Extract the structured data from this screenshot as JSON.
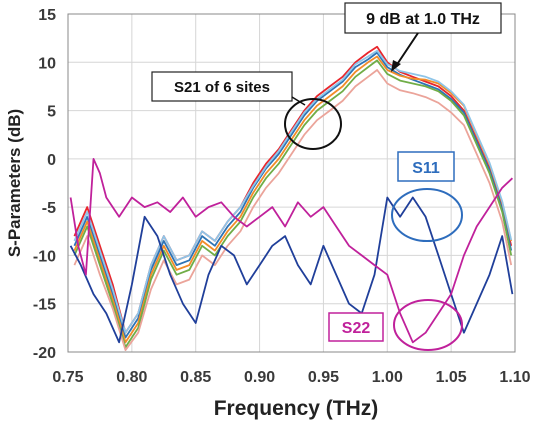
{
  "chart_data": {
    "type": "line",
    "title": "",
    "xlabel": "Frequency (THz)",
    "ylabel": "S-Parameters (dB)",
    "xlim": [
      0.75,
      1.1
    ],
    "ylim": [
      -20,
      15
    ],
    "x_ticks": [
      "0.75",
      "0.80",
      "0.85",
      "0.90",
      "0.95",
      "1.00",
      "1.05",
      "1.10"
    ],
    "y_ticks": [
      "15",
      "10",
      "5",
      "0",
      "-5",
      "-10",
      "-15",
      "-20"
    ],
    "grid": true,
    "legend": "none",
    "annotations": {
      "peak": "9 dB at 1.0 THz",
      "s21": "S21 of 6 sites",
      "s11": "S11",
      "s22": "S22"
    },
    "series": [
      {
        "color": "#e8262c",
        "values": [
          [
            0.755,
            -8
          ],
          [
            0.765,
            -5
          ],
          [
            0.775,
            -9
          ],
          [
            0.785,
            -13
          ],
          [
            0.795,
            -18
          ],
          [
            0.805,
            -16
          ],
          [
            0.815,
            -11
          ],
          [
            0.825,
            -8
          ],
          [
            0.835,
            -10.5
          ],
          [
            0.845,
            -10
          ],
          [
            0.855,
            -7.5
          ],
          [
            0.865,
            -8.5
          ],
          [
            0.875,
            -6.5
          ],
          [
            0.885,
            -5
          ],
          [
            0.895,
            -2.5
          ],
          [
            0.905,
            -0.5
          ],
          [
            0.915,
            1
          ],
          [
            0.925,
            3
          ],
          [
            0.935,
            5
          ],
          [
            0.945,
            6.5
          ],
          [
            0.955,
            7.5
          ],
          [
            0.965,
            8.5
          ],
          [
            0.975,
            10
          ],
          [
            0.985,
            11
          ],
          [
            0.992,
            11.6
          ],
          [
            1.0,
            10
          ],
          [
            1.01,
            9
          ],
          [
            1.02,
            8.5
          ],
          [
            1.03,
            8
          ],
          [
            1.04,
            7.5
          ],
          [
            1.05,
            6.5
          ],
          [
            1.06,
            5
          ],
          [
            1.07,
            2
          ],
          [
            1.08,
            -1
          ],
          [
            1.09,
            -5
          ],
          [
            1.097,
            -9
          ]
        ]
      },
      {
        "color": "#2e74b5",
        "values": [
          [
            0.755,
            -9
          ],
          [
            0.765,
            -6
          ],
          [
            0.775,
            -10
          ],
          [
            0.785,
            -14
          ],
          [
            0.795,
            -18.5
          ],
          [
            0.805,
            -16.5
          ],
          [
            0.815,
            -11.5
          ],
          [
            0.825,
            -8.5
          ],
          [
            0.835,
            -11
          ],
          [
            0.845,
            -10.5
          ],
          [
            0.855,
            -8
          ],
          [
            0.865,
            -9
          ],
          [
            0.875,
            -7
          ],
          [
            0.885,
            -5.5
          ],
          [
            0.895,
            -3
          ],
          [
            0.905,
            -1
          ],
          [
            0.915,
            0.5
          ],
          [
            0.925,
            2.5
          ],
          [
            0.935,
            4.5
          ],
          [
            0.945,
            6
          ],
          [
            0.955,
            7
          ],
          [
            0.965,
            8
          ],
          [
            0.975,
            9.5
          ],
          [
            0.985,
            10.3
          ],
          [
            0.992,
            11
          ],
          [
            1.0,
            9.5
          ],
          [
            1.01,
            8.7
          ],
          [
            1.02,
            8.2
          ],
          [
            1.03,
            7.7
          ],
          [
            1.04,
            7.2
          ],
          [
            1.05,
            6.2
          ],
          [
            1.06,
            4.8
          ],
          [
            1.07,
            1.8
          ],
          [
            1.08,
            -1.2
          ],
          [
            1.09,
            -5.2
          ],
          [
            1.097,
            -9.5
          ]
        ]
      },
      {
        "color": "#f28c28",
        "values": [
          [
            0.755,
            -9.5
          ],
          [
            0.765,
            -6.5
          ],
          [
            0.775,
            -10.5
          ],
          [
            0.785,
            -14.5
          ],
          [
            0.795,
            -19
          ],
          [
            0.805,
            -17
          ],
          [
            0.815,
            -12
          ],
          [
            0.825,
            -9
          ],
          [
            0.835,
            -11.5
          ],
          [
            0.845,
            -11
          ],
          [
            0.855,
            -8.5
          ],
          [
            0.865,
            -9.5
          ],
          [
            0.875,
            -7.5
          ],
          [
            0.885,
            -6
          ],
          [
            0.895,
            -3.5
          ],
          [
            0.905,
            -1.5
          ],
          [
            0.915,
            0
          ],
          [
            0.925,
            2
          ],
          [
            0.935,
            4
          ],
          [
            0.945,
            5.5
          ],
          [
            0.955,
            6.5
          ],
          [
            0.965,
            7.5
          ],
          [
            0.975,
            9
          ],
          [
            0.985,
            10
          ],
          [
            0.992,
            10.6
          ],
          [
            1.0,
            9.2
          ],
          [
            1.01,
            8.6
          ],
          [
            1.02,
            8.3
          ],
          [
            1.03,
            8.2
          ],
          [
            1.04,
            7.8
          ],
          [
            1.05,
            6.8
          ],
          [
            1.06,
            5.5
          ],
          [
            1.07,
            2.5
          ],
          [
            1.08,
            -0.5
          ],
          [
            1.09,
            -4.5
          ],
          [
            1.097,
            -8.5
          ]
        ]
      },
      {
        "color": "#70ad47",
        "values": [
          [
            0.755,
            -10
          ],
          [
            0.765,
            -7
          ],
          [
            0.775,
            -11
          ],
          [
            0.785,
            -15
          ],
          [
            0.795,
            -19.5
          ],
          [
            0.805,
            -17.5
          ],
          [
            0.815,
            -12.5
          ],
          [
            0.825,
            -9.5
          ],
          [
            0.835,
            -12
          ],
          [
            0.845,
            -11.5
          ],
          [
            0.855,
            -9
          ],
          [
            0.865,
            -10
          ],
          [
            0.875,
            -8
          ],
          [
            0.885,
            -6.5
          ],
          [
            0.895,
            -4
          ],
          [
            0.905,
            -2
          ],
          [
            0.915,
            -0.5
          ],
          [
            0.925,
            1.5
          ],
          [
            0.935,
            3.5
          ],
          [
            0.945,
            5
          ],
          [
            0.955,
            6
          ],
          [
            0.965,
            7
          ],
          [
            0.975,
            8.5
          ],
          [
            0.985,
            9.5
          ],
          [
            0.992,
            10.2
          ],
          [
            1.0,
            8.8
          ],
          [
            1.01,
            8.1
          ],
          [
            1.02,
            7.8
          ],
          [
            1.03,
            7.5
          ],
          [
            1.04,
            7
          ],
          [
            1.05,
            6
          ],
          [
            1.06,
            4.5
          ],
          [
            1.07,
            1.5
          ],
          [
            1.08,
            -1.5
          ],
          [
            1.09,
            -5.5
          ],
          [
            1.097,
            -10
          ]
        ]
      },
      {
        "color": "#8ec5e8",
        "values": [
          [
            0.755,
            -8.5
          ],
          [
            0.765,
            -5.5
          ],
          [
            0.775,
            -9.5
          ],
          [
            0.785,
            -13.5
          ],
          [
            0.795,
            -18
          ],
          [
            0.805,
            -16
          ],
          [
            0.815,
            -11
          ],
          [
            0.825,
            -8
          ],
          [
            0.835,
            -10.5
          ],
          [
            0.845,
            -10
          ],
          [
            0.855,
            -7.5
          ],
          [
            0.865,
            -8.5
          ],
          [
            0.875,
            -6.5
          ],
          [
            0.885,
            -5
          ],
          [
            0.895,
            -2.8
          ],
          [
            0.905,
            -0.8
          ],
          [
            0.915,
            0.8
          ],
          [
            0.925,
            2.8
          ],
          [
            0.935,
            4.8
          ],
          [
            0.945,
            6.2
          ],
          [
            0.955,
            7.2
          ],
          [
            0.965,
            8.2
          ],
          [
            0.975,
            9.8
          ],
          [
            0.985,
            10.6
          ],
          [
            0.992,
            11.2
          ],
          [
            1.0,
            9.8
          ],
          [
            1.01,
            9.1
          ],
          [
            1.02,
            8.8
          ],
          [
            1.03,
            8.5
          ],
          [
            1.04,
            8
          ],
          [
            1.05,
            7
          ],
          [
            1.06,
            5.6
          ],
          [
            1.07,
            2.6
          ],
          [
            1.08,
            -0.4
          ],
          [
            1.09,
            -4.4
          ],
          [
            1.097,
            -8.4
          ]
        ]
      },
      {
        "color": "#eba49a",
        "values": [
          [
            0.755,
            -11
          ],
          [
            0.765,
            -8
          ],
          [
            0.775,
            -12
          ],
          [
            0.785,
            -15.5
          ],
          [
            0.795,
            -19.8
          ],
          [
            0.805,
            -18
          ],
          [
            0.815,
            -13.5
          ],
          [
            0.825,
            -10.5
          ],
          [
            0.835,
            -13
          ],
          [
            0.845,
            -12.5
          ],
          [
            0.855,
            -10
          ],
          [
            0.865,
            -11
          ],
          [
            0.875,
            -9
          ],
          [
            0.885,
            -7.5
          ],
          [
            0.895,
            -5
          ],
          [
            0.905,
            -3
          ],
          [
            0.915,
            -1.5
          ],
          [
            0.925,
            0.5
          ],
          [
            0.935,
            2.5
          ],
          [
            0.945,
            4
          ],
          [
            0.955,
            5
          ],
          [
            0.965,
            6
          ],
          [
            0.975,
            7.5
          ],
          [
            0.985,
            8.5
          ],
          [
            0.992,
            9.2
          ],
          [
            1.0,
            7.8
          ],
          [
            1.01,
            7.1
          ],
          [
            1.02,
            6.8
          ],
          [
            1.03,
            6.4
          ],
          [
            1.04,
            5.8
          ],
          [
            1.05,
            4.8
          ],
          [
            1.06,
            3.5
          ],
          [
            1.07,
            0.5
          ],
          [
            1.08,
            -2.5
          ],
          [
            1.09,
            -6.5
          ],
          [
            1.097,
            -11
          ]
        ]
      },
      {
        "color": "#203f9a",
        "values": [
          [
            0.752,
            -9
          ],
          [
            0.76,
            -11
          ],
          [
            0.77,
            -14
          ],
          [
            0.78,
            -16
          ],
          [
            0.79,
            -19
          ],
          [
            0.8,
            -13
          ],
          [
            0.81,
            -6
          ],
          [
            0.82,
            -8
          ],
          [
            0.83,
            -12
          ],
          [
            0.84,
            -15
          ],
          [
            0.85,
            -17
          ],
          [
            0.86,
            -12
          ],
          [
            0.87,
            -9
          ],
          [
            0.88,
            -10
          ],
          [
            0.89,
            -13
          ],
          [
            0.9,
            -11
          ],
          [
            0.91,
            -9
          ],
          [
            0.92,
            -8
          ],
          [
            0.93,
            -11
          ],
          [
            0.94,
            -13
          ],
          [
            0.95,
            -9
          ],
          [
            0.96,
            -12
          ],
          [
            0.97,
            -15
          ],
          [
            0.98,
            -16
          ],
          [
            0.99,
            -12
          ],
          [
            1.0,
            -4
          ],
          [
            1.01,
            -6
          ],
          [
            1.02,
            -4
          ],
          [
            1.03,
            -6
          ],
          [
            1.04,
            -10
          ],
          [
            1.05,
            -14
          ],
          [
            1.06,
            -18
          ],
          [
            1.07,
            -15
          ],
          [
            1.08,
            -12
          ],
          [
            1.09,
            -8
          ],
          [
            1.098,
            -14
          ]
        ]
      },
      {
        "color": "#c0219b",
        "values": [
          [
            0.752,
            -4
          ],
          [
            0.758,
            -9
          ],
          [
            0.764,
            -12
          ],
          [
            0.77,
            0
          ],
          [
            0.775,
            -1.5
          ],
          [
            0.78,
            -4
          ],
          [
            0.785,
            -5
          ],
          [
            0.79,
            -6
          ],
          [
            0.8,
            -4
          ],
          [
            0.81,
            -5
          ],
          [
            0.82,
            -4.5
          ],
          [
            0.83,
            -5.5
          ],
          [
            0.84,
            -4
          ],
          [
            0.85,
            -6
          ],
          [
            0.86,
            -5
          ],
          [
            0.87,
            -4.5
          ],
          [
            0.88,
            -6
          ],
          [
            0.89,
            -7
          ],
          [
            0.9,
            -6
          ],
          [
            0.91,
            -5
          ],
          [
            0.92,
            -7
          ],
          [
            0.93,
            -4.5
          ],
          [
            0.94,
            -6
          ],
          [
            0.95,
            -5
          ],
          [
            0.96,
            -7
          ],
          [
            0.97,
            -9
          ],
          [
            0.98,
            -10
          ],
          [
            0.99,
            -11
          ],
          [
            1.0,
            -12
          ],
          [
            1.01,
            -16
          ],
          [
            1.02,
            -19
          ],
          [
            1.03,
            -18
          ],
          [
            1.04,
            -16
          ],
          [
            1.05,
            -14
          ],
          [
            1.06,
            -10
          ],
          [
            1.07,
            -7
          ],
          [
            1.08,
            -5
          ],
          [
            1.09,
            -3
          ],
          [
            1.098,
            -2
          ]
        ]
      }
    ]
  }
}
